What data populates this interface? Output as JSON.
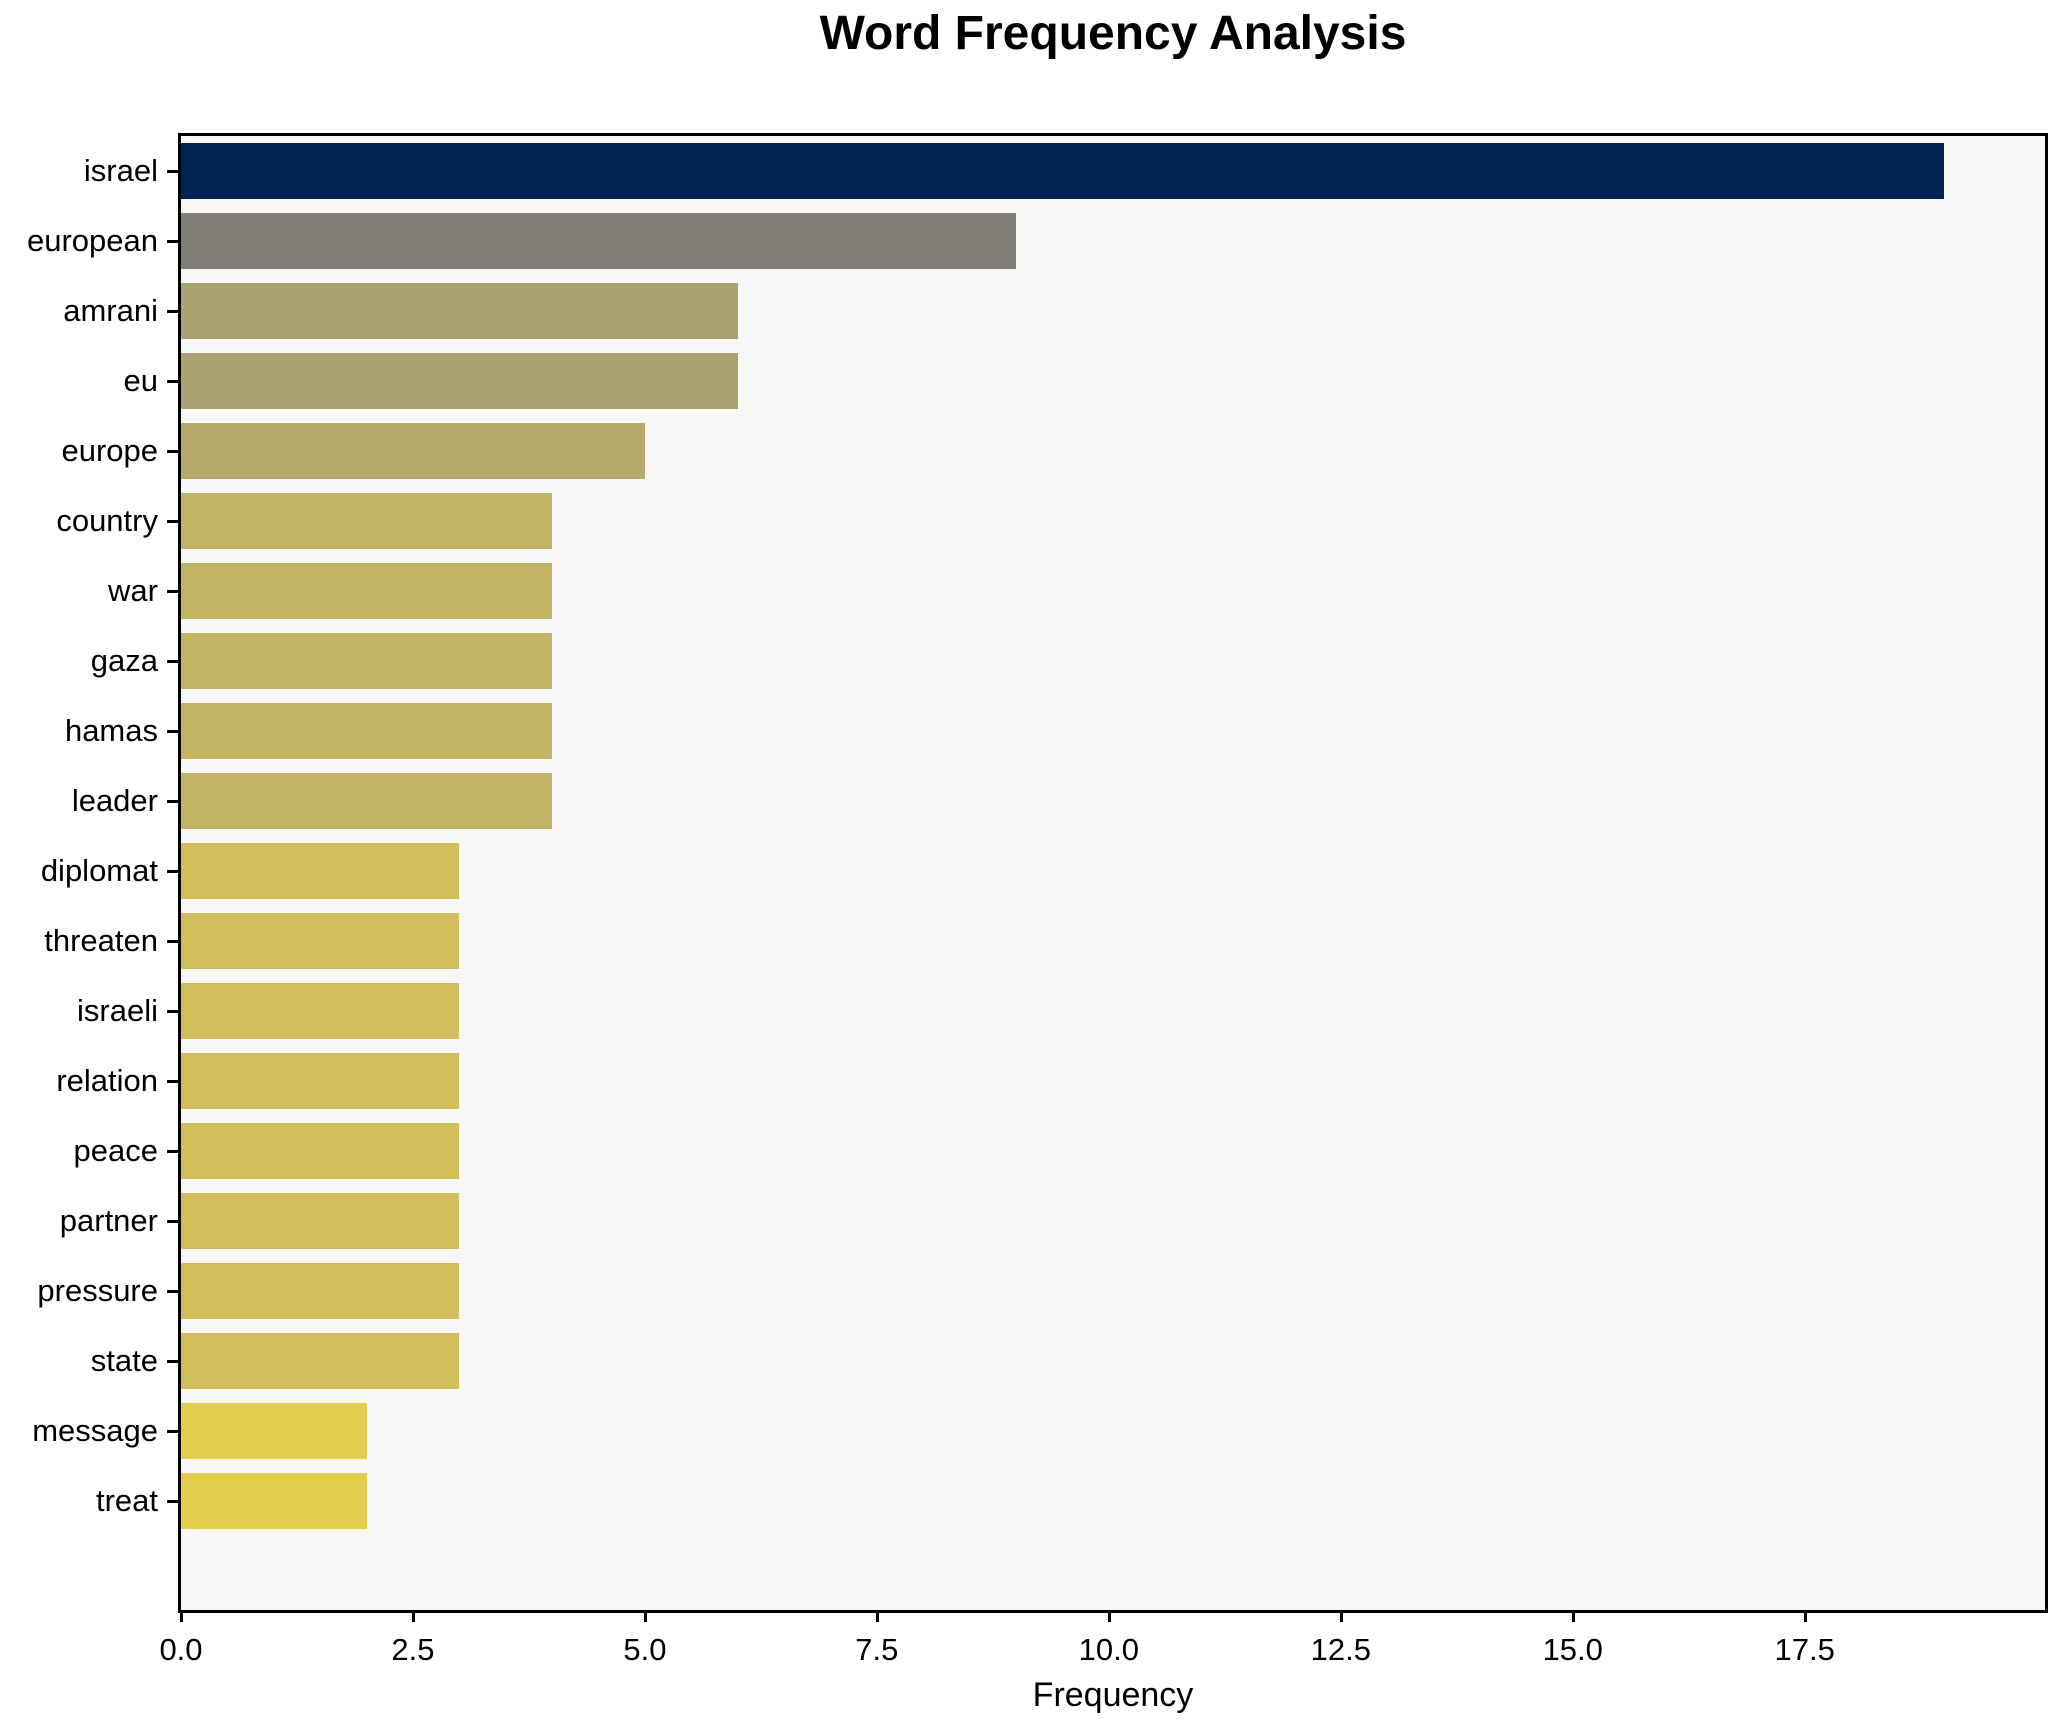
{
  "title": "Word Frequency Analysis",
  "chart_data": {
    "type": "bar",
    "orientation": "horizontal",
    "title": "Word Frequency Analysis",
    "xlabel": "Frequency",
    "ylabel": "",
    "categories": [
      "israel",
      "european",
      "amrani",
      "eu",
      "europe",
      "country",
      "war",
      "gaza",
      "hamas",
      "leader",
      "diplomat",
      "threaten",
      "israeli",
      "relation",
      "peace",
      "partner",
      "pressure",
      "state",
      "message",
      "treat"
    ],
    "values": [
      19,
      9,
      6,
      6,
      5,
      4,
      4,
      4,
      4,
      4,
      3,
      3,
      3,
      3,
      3,
      3,
      3,
      3,
      2,
      2
    ],
    "bar_colors": [
      "#002451",
      "#807e77",
      "#aba171",
      "#aba171",
      "#b5aa6a",
      "#c3b464",
      "#c3b464",
      "#c3b464",
      "#c3b464",
      "#c3b464",
      "#d2bf5b",
      "#d2bf5b",
      "#d2bf5b",
      "#d2bf5b",
      "#d2bf5b",
      "#d2bf5b",
      "#d2bf5b",
      "#d2bf5b",
      "#e5cd4e",
      "#e5cd4e"
    ],
    "x_ticks": [
      0.0,
      2.5,
      5.0,
      7.5,
      10.0,
      12.5,
      15.0,
      17.5
    ],
    "x_tick_labels": [
      "0.0",
      "2.5",
      "5.0",
      "7.5",
      "10.0",
      "12.5",
      "15.0",
      "17.5"
    ],
    "xlim": [
      0,
      20.09
    ],
    "grid": false,
    "legend": null,
    "colors": {
      "plot_background": "#f7f7f6",
      "figure_background": "#ffffff",
      "spine": "#000000",
      "text": "#000000"
    }
  }
}
